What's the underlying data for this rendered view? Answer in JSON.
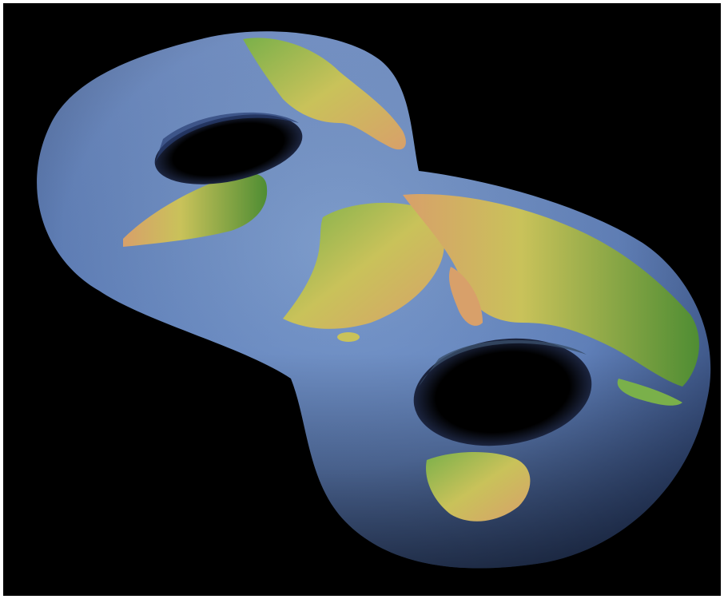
{
  "image": {
    "subject": "double-torus-world-map",
    "background_color": "#000000",
    "frame_color": "#ffffff",
    "colors": {
      "ocean": "#5f7fb8",
      "ocean_dark": "#2a3f73",
      "land_green": "#5f9a3a",
      "land_yellow": "#c9c25a",
      "land_tan": "#d8a06a",
      "shadow": "#0c1224"
    }
  }
}
